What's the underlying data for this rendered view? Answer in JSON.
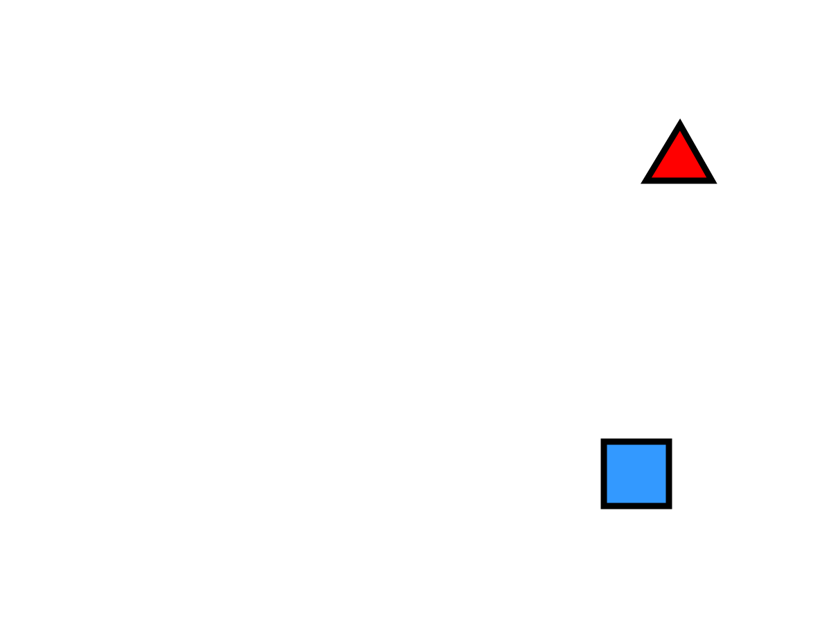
{
  "canvas": {
    "background": "#ffffff"
  },
  "shapes": [
    {
      "kind": "triangle",
      "icon": "triangle-icon",
      "fill": "#ff0000",
      "stroke": "#000000"
    },
    {
      "kind": "square",
      "icon": "square-icon",
      "fill": "#3399ff",
      "stroke": "#000000"
    }
  ]
}
